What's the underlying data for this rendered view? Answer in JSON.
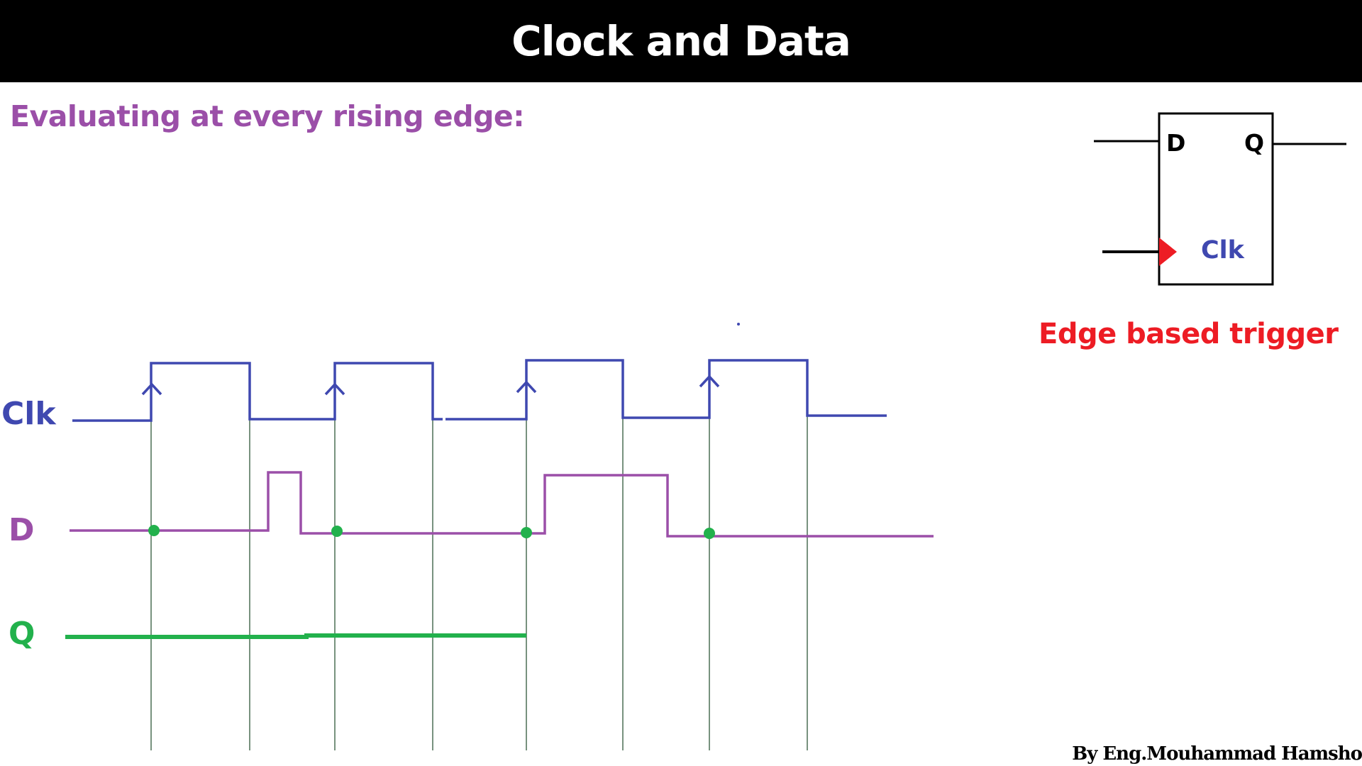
{
  "header": {
    "title": "Clock and Data"
  },
  "subtitle": "Evaluating at every rising edge:",
  "flip_flop": {
    "input_label": "D",
    "output_label": "Q",
    "clock_label": "Clk",
    "trigger_caption": "Edge based trigger"
  },
  "timing": {
    "signals": [
      {
        "name": "Clk",
        "color": "#3f48b0"
      },
      {
        "name": "D",
        "color": "#9b4fa8"
      },
      {
        "name": "Q",
        "color": "#22b14c"
      }
    ]
  },
  "colors": {
    "clk": "#3f48b0",
    "data": "#9b4fa8",
    "q": "#22b14c",
    "edge_marker": "#ed1c24",
    "title_bg": "#000000",
    "title_fg": "#ffffff",
    "guide": "#1f4a2a"
  },
  "footer": {
    "author": "By Eng.Mouhammad Hamsho"
  }
}
